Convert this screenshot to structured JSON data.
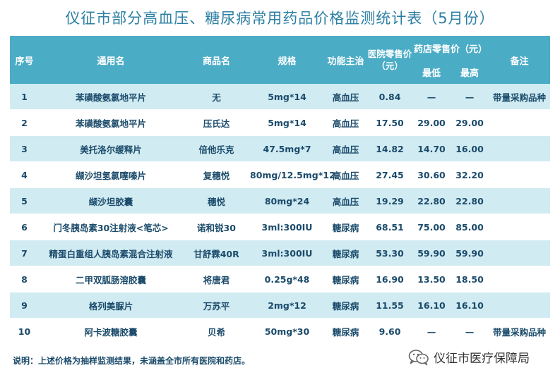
{
  "title": "仪征市部分高血压、糖尿病常用药品价格监测统计表（5月份）",
  "headers": {
    "seq": "序号",
    "generic": "通用名",
    "brand": "商品名",
    "spec": "规格",
    "function": "功能主治",
    "hospital_price": "医院零售价（元）",
    "pharmacy_price": "药店零售价（元）",
    "pharmacy_min": "最低",
    "pharmacy_max": "最高",
    "remark": "备注"
  },
  "rows": [
    {
      "seq": "1",
      "generic": "苯磺酸氨氯地平片",
      "brand": "无",
      "spec": "5mg*14",
      "function": "高血压",
      "hospital": "0.84",
      "min": "—",
      "max": "—",
      "remark": "带量采购品种"
    },
    {
      "seq": "2",
      "generic": "苯磺酸氨氯地平片",
      "brand": "压氏达",
      "spec": "5mg*14",
      "function": "高血压",
      "hospital": "17.50",
      "min": "29.00",
      "max": "29.00",
      "remark": ""
    },
    {
      "seq": "3",
      "generic": "美托洛尔缓释片",
      "brand": "倍他乐克",
      "spec": "47.5mg*7",
      "function": "高血压",
      "hospital": "14.82",
      "min": "14.70",
      "max": "16.00",
      "remark": ""
    },
    {
      "seq": "4",
      "generic": "缬沙坦氢氯噻嗪片",
      "brand": "复穗悦",
      "spec": "80mg/12.5mg*12",
      "function": "高血压",
      "hospital": "27.45",
      "min": "30.60",
      "max": "32.20",
      "remark": ""
    },
    {
      "seq": "5",
      "generic": "缬沙坦胶囊",
      "brand": "穗悦",
      "spec": "80mg*24",
      "function": "高血压",
      "hospital": "19.29",
      "min": "22.80",
      "max": "22.80",
      "remark": ""
    },
    {
      "seq": "6",
      "generic": "门冬胰岛素30注射液<笔芯>",
      "brand": "诺和锐30",
      "spec": "3ml:300IU",
      "function": "糖尿病",
      "hospital": "68.51",
      "min": "75.00",
      "max": "85.00",
      "remark": ""
    },
    {
      "seq": "7",
      "generic": "精蛋白重组人胰岛素混合注射液",
      "brand": "甘舒霖40R",
      "spec": "3ml:300IU",
      "function": "糖尿病",
      "hospital": "53.30",
      "min": "59.90",
      "max": "59.90",
      "remark": ""
    },
    {
      "seq": "8",
      "generic": "二甲双胍肠溶胶囊",
      "brand": "将唐君",
      "spec": "0.25g*48",
      "function": "糖尿病",
      "hospital": "16.90",
      "min": "13.50",
      "max": "18.50",
      "remark": ""
    },
    {
      "seq": "9",
      "generic": "格列美脲片",
      "brand": "万苏平",
      "spec": "2mg*12",
      "function": "糖尿病",
      "hospital": "11.55",
      "min": "16.10",
      "max": "16.10",
      "remark": ""
    },
    {
      "seq": "10",
      "generic": "阿卡波糖胶囊",
      "brand": "贝希",
      "spec": "50mg*30",
      "function": "糖尿病",
      "hospital": "9.60",
      "min": "—",
      "max": "—",
      "remark": "带量采购品种"
    }
  ],
  "footer": "说明：上述价格为抽样监测结果，未涵盖全市所有医院和药店。",
  "brand_name": "仪征市医疗保障局",
  "colors": {
    "header_bg": "#4bacc6",
    "row_alt": "#d1ebf2",
    "title": "#2c7fa3",
    "text": "#1b4b6b"
  },
  "icons": {
    "brand_logo": "wechat-logo-icon"
  }
}
